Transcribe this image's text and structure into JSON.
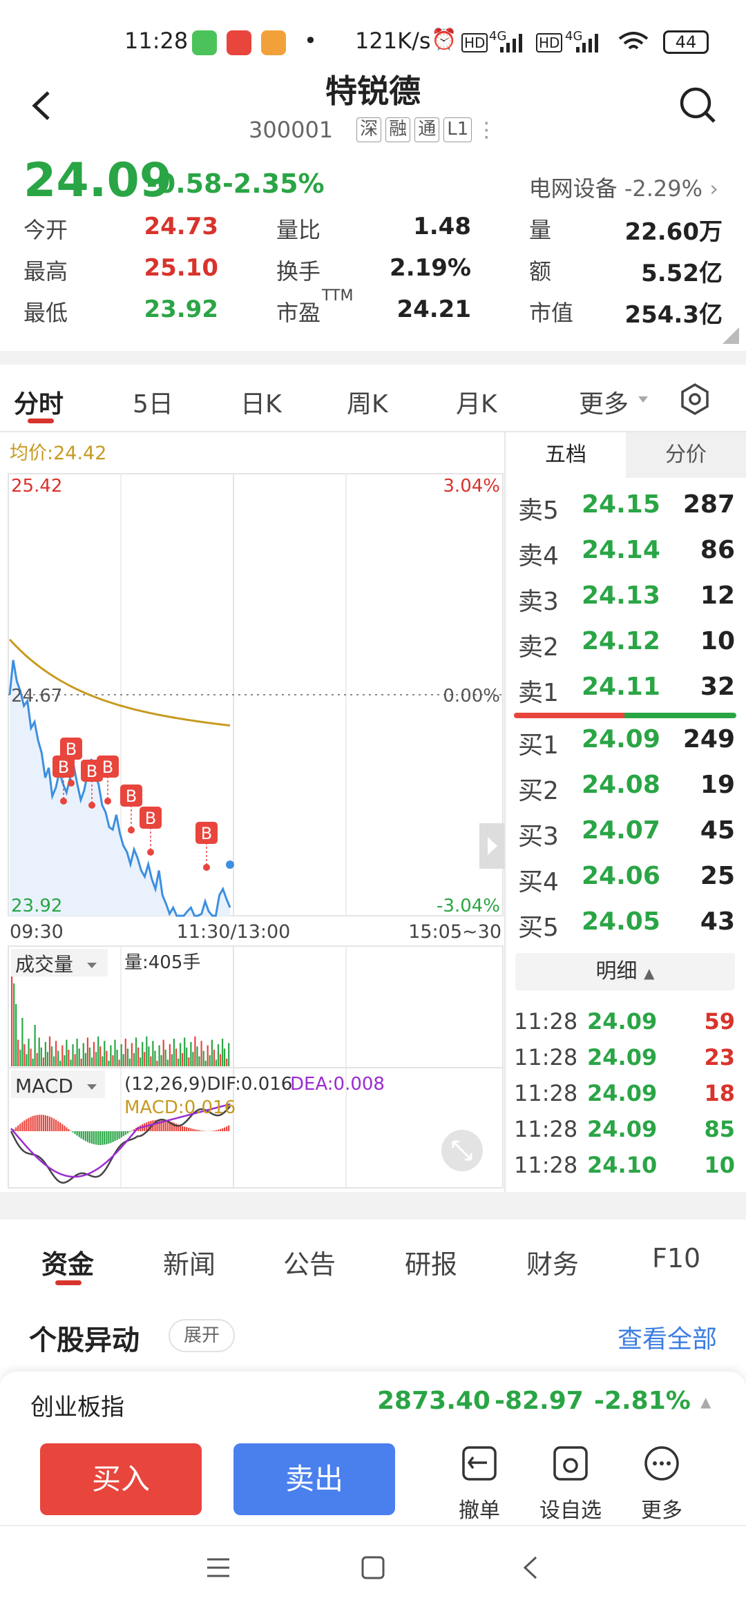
{
  "status_bar": {
    "time": "11:28",
    "speed": "121K/s",
    "net1": "4G",
    "net2": "4G",
    "hd": "HD",
    "battery": "44"
  },
  "header": {
    "title": "特锐德",
    "code": "300001",
    "tags": [
      "深",
      "融",
      "通",
      "L1"
    ]
  },
  "quote": {
    "price": "24.09",
    "change": "-0.58",
    "change_pct": "-2.35%",
    "sector_name": "电网设备",
    "sector_pct": "-2.29%",
    "stats": [
      {
        "label": "今开",
        "value": "24.73",
        "color": "red"
      },
      {
        "label": "量比",
        "value": "1.48",
        "color": "dark"
      },
      {
        "label": "量",
        "value": "22.60万",
        "color": "dark"
      },
      {
        "label": "最高",
        "value": "25.10",
        "color": "red"
      },
      {
        "label": "换手",
        "value": "2.19%",
        "color": "dark"
      },
      {
        "label": "额",
        "value": "5.52亿",
        "color": "dark"
      },
      {
        "label": "最低",
        "value": "23.92",
        "color": "green"
      },
      {
        "label": "市盈",
        "sup": "TTM",
        "value": "24.21",
        "color": "dark"
      },
      {
        "label": "市值",
        "value": "254.3亿",
        "color": "dark"
      }
    ]
  },
  "period_tabs": [
    "分时",
    "5日",
    "日K",
    "周K",
    "月K",
    "更多"
  ],
  "intraday": {
    "avg_label": "均价:24.42",
    "y_max": "25.42",
    "y_min": "23.92",
    "y_mid": "24.67",
    "pct_max": "3.04%",
    "pct_mid": "0.00%",
    "pct_min": "-3.04%",
    "time_start": "09:30",
    "time_mid": "11:30/13:00",
    "time_end": "15:05~30",
    "b_marker": "B",
    "volume_label": "成交量",
    "volume_value": "量:405手",
    "macd_label": "MACD",
    "macd_params": "(12,26,9)DIF:0.016",
    "macd_dea": "DEA:0.008",
    "macd_val": "MACD:0.016"
  },
  "order_book": {
    "tabs": [
      "五档",
      "分价"
    ],
    "asks": [
      {
        "label": "卖5",
        "price": "24.15",
        "qty": "287"
      },
      {
        "label": "卖4",
        "price": "24.14",
        "qty": "86"
      },
      {
        "label": "卖3",
        "price": "24.13",
        "qty": "12"
      },
      {
        "label": "卖2",
        "price": "24.12",
        "qty": "10"
      },
      {
        "label": "卖1",
        "price": "24.11",
        "qty": "32"
      }
    ],
    "bids": [
      {
        "label": "买1",
        "price": "24.09",
        "qty": "249"
      },
      {
        "label": "买2",
        "price": "24.08",
        "qty": "19"
      },
      {
        "label": "买3",
        "price": "24.07",
        "qty": "45"
      },
      {
        "label": "买4",
        "price": "24.06",
        "qty": "25"
      },
      {
        "label": "买5",
        "price": "24.05",
        "qty": "43"
      }
    ],
    "detail_label": "明细",
    "trades": [
      {
        "time": "11:28",
        "price": "24.09",
        "qty": "59",
        "color": "red"
      },
      {
        "time": "11:28",
        "price": "24.09",
        "qty": "23",
        "color": "red"
      },
      {
        "time": "11:28",
        "price": "24.09",
        "qty": "18",
        "color": "red"
      },
      {
        "time": "11:28",
        "price": "24.09",
        "qty": "85",
        "color": "green"
      },
      {
        "time": "11:28",
        "price": "24.10",
        "qty": "10",
        "color": "green"
      }
    ]
  },
  "bottom_tabs": [
    "资金",
    "新闻",
    "公告",
    "研报",
    "财务",
    "F10"
  ],
  "anomaly": {
    "title": "个股异动",
    "expand": "展开",
    "view_all": "查看全部"
  },
  "index_bar": {
    "name": "创业板指",
    "value": "2873.40",
    "change": "-82.97",
    "pct": "-2.81%"
  },
  "actions": {
    "buy": "买入",
    "sell": "卖出",
    "tools": [
      "撤单",
      "设自选",
      "更多"
    ]
  }
}
